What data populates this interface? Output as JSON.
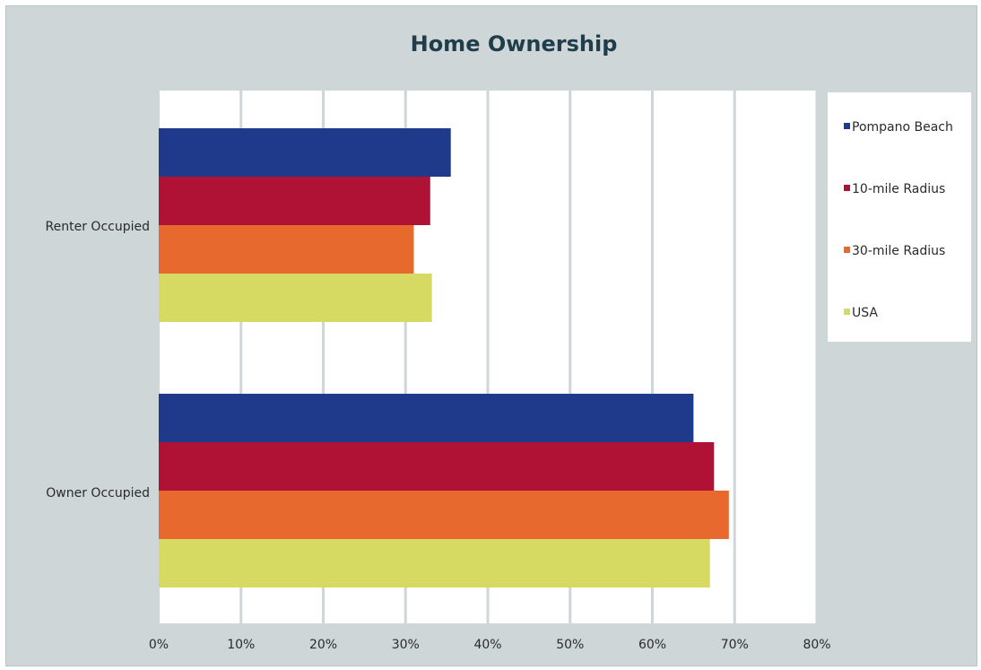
{
  "chart_data": {
    "type": "bar",
    "orientation": "horizontal",
    "title": "Home Ownership",
    "categories": [
      "Renter Occupied",
      "Owner Occupied"
    ],
    "series": [
      {
        "name": "Pompano Beach",
        "color": "#1f3a8a",
        "values": [
          35.5,
          65
        ]
      },
      {
        "name": "10-mile Radius",
        "color": "#b01236",
        "values": [
          33,
          67.5
        ]
      },
      {
        "name": "30-mile Radius",
        "color": "#e8692e",
        "values": [
          31,
          69.3
        ]
      },
      {
        "name": "USA",
        "color": "#d6d962",
        "values": [
          33.2,
          67
        ]
      }
    ],
    "xlim": [
      0,
      80
    ],
    "xticks": [
      "0%",
      "10%",
      "20%",
      "30%",
      "40%",
      "50%",
      "60%",
      "70%",
      "80%"
    ],
    "grid": true,
    "legend": "right"
  }
}
